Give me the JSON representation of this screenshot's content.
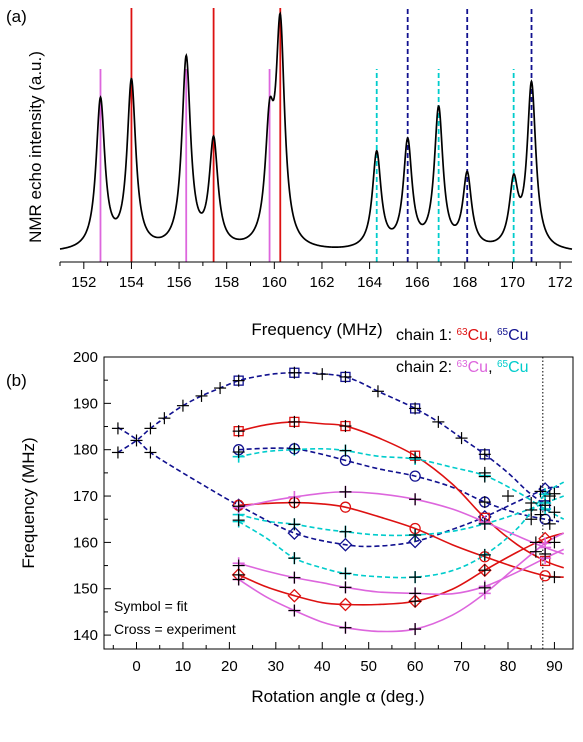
{
  "chart_data": [
    {
      "panel": "(a)",
      "type": "line",
      "xlabel": "Frequency  (MHz)",
      "ylabel": "NMR echo intensity  (a.u.)",
      "xlim": [
        151,
        172.5
      ],
      "xticks": [
        152,
        154,
        156,
        158,
        160,
        162,
        164,
        166,
        168,
        170,
        172
      ],
      "ylim": [
        0,
        1
      ],
      "peaks": [
        {
          "x": 152.7,
          "height": 0.59
        },
        {
          "x": 154.0,
          "height": 0.66
        },
        {
          "x": 156.3,
          "height": 0.75
        },
        {
          "x": 157.45,
          "height": 0.42
        },
        {
          "x": 159.8,
          "height": 0.43
        },
        {
          "x": 160.25,
          "height": 0.85
        },
        {
          "x": 164.3,
          "height": 0.38
        },
        {
          "x": 165.6,
          "height": 0.42
        },
        {
          "x": 166.9,
          "height": 0.55
        },
        {
          "x": 168.1,
          "height": 0.29
        },
        {
          "x": 170.05,
          "height": 0.25
        },
        {
          "x": 170.8,
          "height": 0.65
        }
      ],
      "stick_series": [
        {
          "color": "#dd66dd",
          "style": "solid",
          "x": [
            152.7,
            156.3,
            159.8
          ],
          "height": 0.76
        },
        {
          "color": "#dd1111",
          "style": "solid",
          "x": [
            154.0,
            157.45,
            160.25
          ],
          "height": 1.0
        },
        {
          "color": "#00cccc",
          "style": "dashed",
          "x": [
            164.3,
            166.9,
            170.05
          ],
          "height": 0.76
        },
        {
          "color": "#11118f",
          "style": "dashed",
          "x": [
            165.6,
            168.1,
            170.8
          ],
          "height": 1.0
        }
      ]
    },
    {
      "panel": "(b)",
      "type": "scatter",
      "xlabel": "Rotation angle α  (deg.)",
      "ylabel": "Frequency  (MHz)",
      "xlim": [
        -7,
        94
      ],
      "ylim": [
        137,
        200
      ],
      "xticks": [
        0,
        10,
        20,
        30,
        40,
        50,
        60,
        70,
        80,
        90
      ],
      "yticks": [
        140,
        150,
        160,
        170,
        180,
        190,
        200
      ],
      "vline_x": 87.5,
      "legend": {
        "chain1_label": "chain 1: ",
        "chain2_label": "chain 2: ",
        "iso63_mass": "63",
        "iso65_mass": "65",
        "element": "Cu",
        "sep": ", "
      },
      "annotation_lines": [
        "Symbol = fit",
        "Cross = experiment"
      ],
      "curves": [
        {
          "isotope": "65",
          "chain": 1,
          "color": "#11118f",
          "dashed": true,
          "shape": "square",
          "x": [
            -4,
            0,
            3,
            6,
            10,
            14,
            18,
            22,
            26,
            30,
            34,
            38,
            42,
            45,
            48,
            52,
            56,
            60,
            65,
            70,
            75,
            80,
            84,
            87,
            88
          ],
          "y": [
            179.4,
            182.0,
            184.6,
            186.8,
            189.5,
            191.6,
            193.3,
            194.9,
            195.8,
            196.4,
            196.6,
            196.5,
            196.2,
            195.7,
            194.6,
            192.6,
            190.8,
            188.9,
            186.0,
            182.5,
            179.0,
            175.0,
            171.2,
            168.8,
            168.0
          ],
          "markers_x": [
            22,
            34,
            45,
            60,
            75,
            88
          ],
          "markers_y": [
            194.9,
            196.6,
            195.7,
            188.9,
            179.0,
            168.0
          ]
        },
        {
          "isotope": "65",
          "chain": 1,
          "color": "#11118f",
          "dashed": true,
          "shape": "diamond",
          "x": [
            -4,
            0,
            3,
            8,
            15,
            22,
            34,
            45,
            52,
            60,
            68,
            75,
            82,
            88,
            91
          ],
          "y": [
            184.8,
            182.2,
            179.4,
            176.2,
            172.0,
            168.0,
            162.0,
            159.5,
            159.2,
            160.2,
            162.8,
            165.5,
            168.8,
            171.5,
            172.0
          ],
          "markers_x": [
            22,
            34,
            45,
            60,
            75,
            88
          ],
          "markers_y": [
            168.0,
            162.0,
            159.5,
            160.2,
            165.5,
            171.5
          ]
        },
        {
          "isotope": "65",
          "chain": 1,
          "color": "#11118f",
          "dashed": true,
          "shape": "circle",
          "x": [
            22,
            28,
            34,
            40,
            45,
            52,
            60,
            68,
            75,
            82,
            88,
            91
          ],
          "y": [
            180.0,
            180.3,
            180.2,
            179.0,
            177.7,
            175.9,
            174.3,
            171.9,
            168.7,
            166.3,
            165.0,
            164.5
          ],
          "markers_x": [
            22,
            34,
            45,
            60,
            75,
            88
          ],
          "markers_y": [
            180.0,
            180.2,
            177.7,
            174.3,
            168.7,
            165.0
          ]
        },
        {
          "isotope": "63",
          "chain": 1,
          "color": "#dd1111",
          "dashed": false,
          "shape": "square",
          "x": [
            22,
            28,
            34,
            40,
            45,
            52,
            60,
            68,
            75,
            82,
            88,
            92
          ],
          "y": [
            184.0,
            185.4,
            186.0,
            185.6,
            185.1,
            182.6,
            178.7,
            172.6,
            165.3,
            159.5,
            156.0,
            154.5
          ],
          "markers_x": [
            22,
            34,
            45,
            60,
            75,
            88
          ],
          "markers_y": [
            184.0,
            186.0,
            185.1,
            178.7,
            165.3,
            156.0
          ]
        },
        {
          "isotope": "63",
          "chain": 1,
          "color": "#dd1111",
          "dashed": false,
          "shape": "circle",
          "x": [
            22,
            28,
            34,
            40,
            45,
            52,
            60,
            68,
            75,
            82,
            88,
            92
          ],
          "y": [
            168.0,
            168.4,
            168.6,
            168.3,
            167.6,
            165.6,
            163.0,
            159.5,
            156.9,
            154.5,
            152.8,
            152.5
          ],
          "markers_x": [
            22,
            34,
            45,
            60,
            75,
            88
          ],
          "markers_y": [
            168.0,
            168.6,
            167.6,
            163.0,
            156.9,
            152.8
          ]
        },
        {
          "isotope": "63",
          "chain": 1,
          "color": "#dd1111",
          "dashed": false,
          "shape": "diamond",
          "x": [
            22,
            28,
            34,
            40,
            45,
            52,
            60,
            68,
            75,
            82,
            88,
            92
          ],
          "y": [
            153.0,
            150.4,
            148.5,
            147.0,
            146.6,
            146.6,
            147.3,
            149.9,
            154.0,
            157.9,
            160.8,
            162.0
          ],
          "markers_x": [
            22,
            34,
            45,
            60,
            75,
            88
          ],
          "markers_y": [
            153.0,
            148.5,
            146.6,
            147.3,
            154.0,
            160.8
          ]
        },
        {
          "isotope": "65",
          "chain": 2,
          "color": "#00cccc",
          "dashed": true,
          "shape": "cross",
          "x": [
            22,
            28,
            34,
            40,
            45,
            52,
            60,
            68,
            75,
            82,
            88,
            92
          ],
          "y": [
            178.5,
            179.6,
            180.0,
            180.2,
            179.8,
            178.6,
            178.0,
            176.2,
            174.4,
            170.9,
            167.2,
            165.0
          ],
          "markers_x": [
            22,
            34,
            45,
            60,
            75,
            88
          ],
          "markers_y": [
            178.5,
            180.0,
            179.8,
            178.0,
            174.4,
            167.2
          ]
        },
        {
          "isotope": "65",
          "chain": 2,
          "color": "#00cccc",
          "dashed": true,
          "shape": "cross",
          "x": [
            22,
            28,
            34,
            40,
            45,
            52,
            60,
            68,
            75,
            82,
            88,
            92
          ],
          "y": [
            166.0,
            164.6,
            163.9,
            162.9,
            162.3,
            161.6,
            161.6,
            162.4,
            164.0,
            166.2,
            168.5,
            170.0
          ],
          "markers_x": [
            22,
            34,
            45,
            60,
            75,
            88
          ],
          "markers_y": [
            166.0,
            163.9,
            162.3,
            161.6,
            164.0,
            168.5
          ]
        },
        {
          "isotope": "65",
          "chain": 2,
          "color": "#00cccc",
          "dashed": true,
          "shape": "cross",
          "x": [
            22,
            28,
            34,
            40,
            45,
            52,
            60,
            68,
            75,
            82,
            88,
            92
          ],
          "y": [
            164.5,
            160.9,
            156.6,
            154.5,
            153.3,
            152.6,
            152.5,
            153.9,
            157.3,
            163.0,
            170.4,
            173.0
          ],
          "markers_x": [
            22,
            34,
            45,
            60,
            75,
            88
          ],
          "markers_y": [
            164.5,
            156.6,
            153.3,
            152.5,
            157.3,
            170.4
          ]
        },
        {
          "isotope": "63",
          "chain": 2,
          "color": "#dd66dd",
          "dashed": false,
          "shape": "cross",
          "x": [
            22,
            28,
            34,
            40,
            45,
            52,
            60,
            68,
            75,
            82,
            88,
            92
          ],
          "y": [
            167.5,
            168.8,
            169.8,
            170.6,
            170.9,
            170.5,
            169.3,
            167.2,
            164.4,
            161.4,
            158.9,
            157.5
          ],
          "markers_x": [
            22,
            34,
            45,
            60,
            75,
            88
          ],
          "markers_y": [
            167.5,
            169.8,
            170.9,
            169.3,
            164.4,
            158.9
          ]
        },
        {
          "isotope": "63",
          "chain": 2,
          "color": "#dd66dd",
          "dashed": false,
          "shape": "cross",
          "x": [
            22,
            28,
            34,
            40,
            45,
            52,
            60,
            68,
            75,
            82,
            88,
            92
          ],
          "y": [
            155.5,
            153.8,
            152.4,
            151.3,
            150.3,
            149.3,
            149.0,
            148.9,
            150.5,
            153.6,
            156.6,
            158.5
          ],
          "markers_x": [
            22,
            34,
            45,
            60,
            75,
            88
          ],
          "markers_y": [
            155.5,
            152.4,
            150.3,
            149.0,
            150.5,
            156.6
          ]
        },
        {
          "isotope": "63",
          "chain": 2,
          "color": "#dd66dd",
          "dashed": false,
          "shape": "cross",
          "x": [
            22,
            28,
            34,
            40,
            45,
            52,
            60,
            68,
            75,
            82,
            88,
            92
          ],
          "y": [
            152.0,
            148.2,
            145.3,
            142.8,
            141.6,
            140.8,
            141.3,
            144.3,
            149.0,
            154.9,
            159.8,
            162.0
          ],
          "markers_x": [
            22,
            34,
            45,
            60,
            75,
            88
          ],
          "markers_y": [
            152.0,
            145.3,
            141.6,
            141.3,
            149.0,
            159.8
          ]
        }
      ],
      "experiment": {
        "x": [
          -4,
          -4,
          0,
          3,
          3,
          6,
          10,
          14,
          18,
          22,
          22,
          22,
          22,
          22,
          22,
          22,
          22,
          34,
          34,
          34,
          34,
          34,
          34,
          34,
          34,
          40,
          45,
          45,
          45,
          45,
          45,
          45,
          45,
          45,
          52,
          60,
          60,
          60,
          60,
          60,
          60,
          60,
          60,
          65,
          70,
          75,
          75,
          75,
          75,
          75,
          75,
          75,
          75,
          80,
          85,
          85,
          85,
          86,
          86,
          87,
          87,
          88,
          88,
          89,
          89,
          90,
          90,
          90,
          90
        ],
        "y": [
          184.6,
          179.4,
          182.0,
          184.6,
          179.4,
          186.8,
          189.5,
          191.6,
          193.3,
          194.9,
          184.0,
          179.5,
          167.8,
          164.8,
          155.0,
          153.0,
          152.0,
          196.6,
          186.0,
          180.2,
          168.6,
          163.9,
          156.6,
          152.4,
          145.3,
          196.3,
          195.7,
          185.1,
          179.8,
          170.9,
          162.3,
          153.3,
          150.3,
          141.6,
          192.6,
          188.9,
          178.3,
          169.3,
          161.6,
          152.5,
          149.0,
          147.3,
          141.3,
          186.0,
          182.5,
          179.0,
          174.2,
          168.7,
          164.0,
          157.3,
          154.0,
          150.2,
          175.0,
          170.0,
          167.0,
          165.0,
          168.5,
          160.0,
          158.0,
          171.0,
          166.0,
          168.0,
          157.5,
          170.0,
          164.0,
          170.5,
          166.5,
          160.0,
          152.5
        ]
      }
    }
  ]
}
